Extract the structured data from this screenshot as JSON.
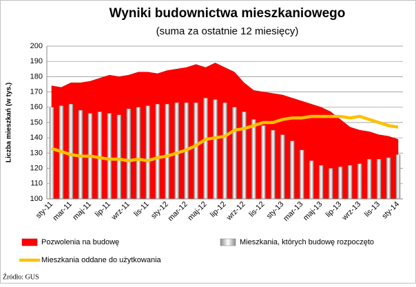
{
  "chart_data": {
    "type": "combo",
    "title": "Wyniki budownictwa mieszkaniowego",
    "subtitle": "(suma za ostatnie 12 miesięcy)",
    "y_label": "Liczba mieszkań (w tys.)",
    "source": "Źródło: GUS",
    "categories": [
      "sty-11",
      null,
      "mar-11",
      null,
      "maj-11",
      null,
      "lip-11",
      null,
      "wrz-11",
      null,
      "lis-11",
      null,
      "sty-12",
      null,
      "mar-12",
      null,
      "maj-12",
      null,
      "lip-12",
      null,
      "wrz-12",
      null,
      "lis-12",
      null,
      "sty-13",
      null,
      "mar-13",
      null,
      "maj-13",
      null,
      "lip-13",
      null,
      "wrz-13",
      null,
      "lis-13",
      null,
      "sty-14"
    ],
    "ylim": [
      100,
      200
    ],
    "yticks": [
      100,
      110,
      120,
      130,
      140,
      150,
      160,
      170,
      180,
      190,
      200
    ],
    "grid": true,
    "series": [
      {
        "name": "Pozwolenia na budowę",
        "kind": "area",
        "color": "#ff0000",
        "values": [
          174,
          173,
          176,
          176,
          177,
          179,
          181,
          180,
          181,
          183,
          183,
          182,
          184,
          185,
          186,
          188,
          186,
          189,
          186,
          183,
          176,
          171,
          170,
          169,
          168,
          166,
          164,
          162,
          160,
          157,
          152,
          147,
          145,
          144,
          142,
          141,
          139
        ]
      },
      {
        "name": "Mieszkania, których budowę rozpoczęto",
        "kind": "bar",
        "color": "#c0c0c0",
        "values": [
          160,
          161,
          162,
          158,
          156,
          157,
          156,
          155,
          159,
          160,
          161,
          162,
          162,
          163,
          163,
          163,
          166,
          165,
          163,
          160,
          157,
          152,
          148,
          145,
          142,
          138,
          132,
          125,
          122,
          120,
          121,
          122,
          123,
          126,
          126,
          127,
          129
        ]
      },
      {
        "name": "Mieszkania oddane do użytkowania",
        "kind": "line",
        "color": "#ffc000",
        "values": [
          133,
          131,
          129,
          128,
          128,
          127,
          126,
          126,
          125,
          126,
          125,
          127,
          128,
          130,
          132,
          135,
          139,
          140,
          141,
          145,
          146,
          148,
          150,
          150,
          152,
          153,
          153,
          154,
          154,
          154,
          154,
          153,
          154,
          152,
          150,
          148,
          147
        ]
      }
    ]
  }
}
